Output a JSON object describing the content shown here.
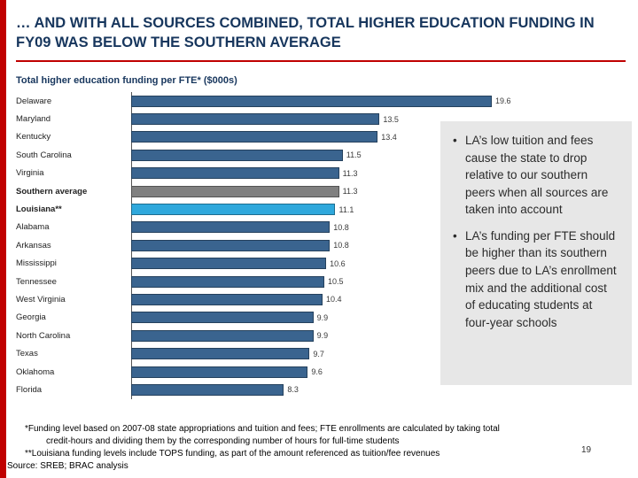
{
  "slide": {
    "title": "… AND WITH ALL SOURCES COMBINED, TOTAL HIGHER EDUCATION FUNDING IN FY09 WAS BELOW THE SOUTHERN AVERAGE",
    "page_number": "19"
  },
  "chart_data": {
    "type": "bar",
    "orientation": "horizontal",
    "title": "Total higher education funding per FTE* ($000s)",
    "categories": [
      "Delaware",
      "Maryland",
      "Kentucky",
      "South Carolina",
      "Virginia",
      "Southern average",
      "Louisiana**",
      "Alabama",
      "Arkansas",
      "Mississippi",
      "Tennessee",
      "West Virginia",
      "Georgia",
      "North Carolina",
      "Texas",
      "Oklahoma",
      "Florida"
    ],
    "values": [
      19.6,
      13.5,
      13.4,
      11.5,
      11.3,
      11.3,
      11.1,
      10.8,
      10.8,
      10.6,
      10.5,
      10.4,
      9.9,
      9.9,
      9.7,
      9.6,
      8.3
    ],
    "xlim": [
      0,
      20
    ],
    "unit": "$000s",
    "grid": false,
    "legend": "none",
    "emphasis_indices": [
      5,
      6
    ],
    "colors": {
      "bar": "#3a648f",
      "average": "#808080",
      "louisiana": "#2fa8dc"
    },
    "color_overrides": {
      "5": "#808080",
      "6": "#2fa8dc"
    }
  },
  "notes": {
    "bullets": [
      "LA’s low tuition and fees cause the state to drop relative to our southern peers when all sources are taken into account",
      "LA’s funding per FTE should be higher than its southern peers due to LA’s enrollment mix and the additional cost of educating students at four-year schools"
    ]
  },
  "footnotes": {
    "line1": "*Funding level based on 2007-08 state appropriations and tuition and fees; FTE enrollments are calculated by taking total",
    "line2": "credit-hours and dividing them by the corresponding number of hours for full-time students",
    "line3": "**Louisiana funding levels include TOPS funding, as part of the amount referenced as tuition/fee revenues",
    "source": "Source: SREB; BRAC analysis"
  }
}
